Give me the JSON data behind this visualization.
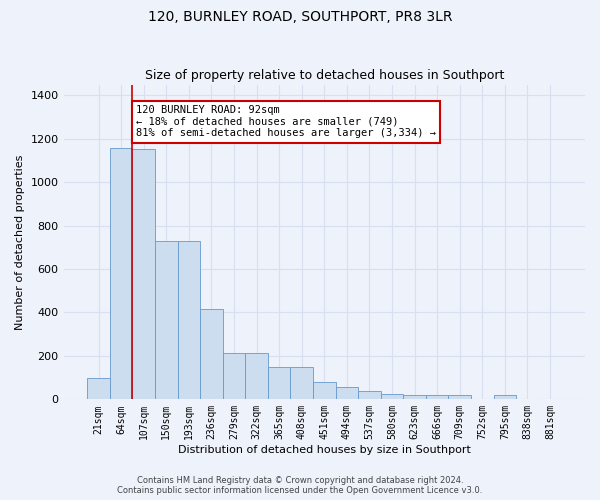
{
  "title": "120, BURNLEY ROAD, SOUTHPORT, PR8 3LR",
  "subtitle": "Size of property relative to detached houses in Southport",
  "xlabel": "Distribution of detached houses by size in Southport",
  "ylabel": "Number of detached properties",
  "categories": [
    "21sqm",
    "64sqm",
    "107sqm",
    "150sqm",
    "193sqm",
    "236sqm",
    "279sqm",
    "322sqm",
    "365sqm",
    "408sqm",
    "451sqm",
    "494sqm",
    "537sqm",
    "580sqm",
    "623sqm",
    "666sqm",
    "709sqm",
    "752sqm",
    "795sqm",
    "838sqm",
    "881sqm"
  ],
  "values": [
    100,
    1160,
    1155,
    730,
    730,
    415,
    215,
    215,
    150,
    150,
    80,
    55,
    40,
    25,
    20,
    20,
    20,
    0,
    20,
    0,
    0
  ],
  "bar_color": "#ccddf0",
  "bar_edge_color": "#6699cc",
  "background_color": "#eef2fa",
  "grid_color": "#d8dff0",
  "vline_color": "#cc0000",
  "vline_x": 1.5,
  "annotation_text": "120 BURNLEY ROAD: 92sqm\n← 18% of detached houses are smaller (749)\n81% of semi-detached houses are larger (3,334) →",
  "annotation_box_facecolor": "#ffffff",
  "annotation_box_edgecolor": "#cc0000",
  "footer_line1": "Contains HM Land Registry data © Crown copyright and database right 2024.",
  "footer_line2": "Contains public sector information licensed under the Open Government Licence v3.0.",
  "ylim": [
    0,
    1450
  ],
  "yticks": [
    0,
    200,
    400,
    600,
    800,
    1000,
    1200,
    1400
  ],
  "title_fontsize": 10,
  "subtitle_fontsize": 9,
  "ylabel_fontsize": 8,
  "xlabel_fontsize": 8,
  "ytick_fontsize": 8,
  "xtick_fontsize": 7,
  "footer_fontsize": 6,
  "annot_fontsize": 7.5
}
